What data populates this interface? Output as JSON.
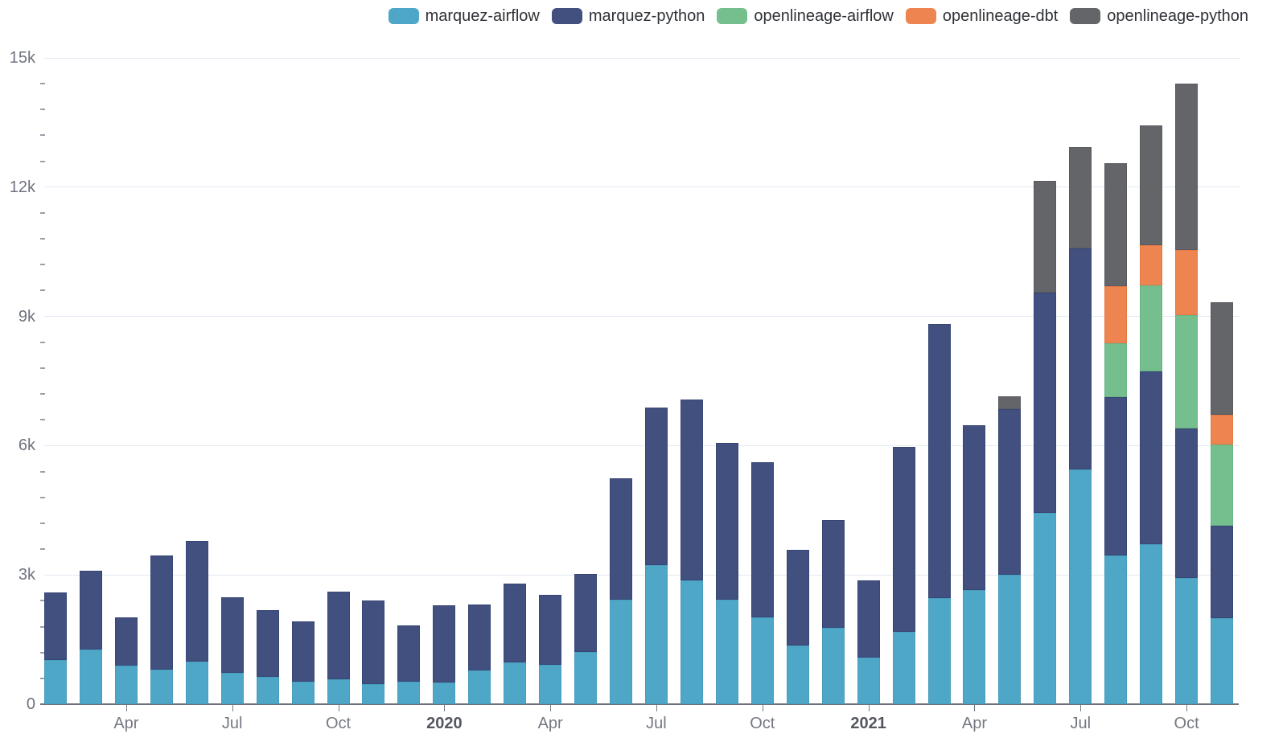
{
  "chart_data": {
    "type": "bar",
    "stacked": true,
    "title": "",
    "xlabel": "",
    "ylabel": "",
    "ylim": [
      0,
      15000
    ],
    "grid": true,
    "legend_position": "top-right",
    "y_ticks": [
      {
        "value": 0,
        "label": "0"
      },
      {
        "value": 3000,
        "label": "3k"
      },
      {
        "value": 6000,
        "label": "6k"
      },
      {
        "value": 9000,
        "label": "9k"
      },
      {
        "value": 12000,
        "label": "12k"
      },
      {
        "value": 15000,
        "label": "15k"
      }
    ],
    "y_minor_step": 600,
    "categories": [
      "Feb 2019",
      "Mar 2019",
      "Apr 2019",
      "May 2019",
      "Jun 2019",
      "Jul 2019",
      "Aug 2019",
      "Sep 2019",
      "Oct 2019",
      "Nov 2019",
      "Dec 2019",
      "Jan 2020",
      "Feb 2020",
      "Mar 2020",
      "Apr 2020",
      "May 2020",
      "Jun 2020",
      "Jul 2020",
      "Aug 2020",
      "Sep 2020",
      "Oct 2020",
      "Nov 2020",
      "Dec 2020",
      "Jan 2021",
      "Feb 2021",
      "Mar 2021",
      "Apr 2021",
      "May 2021",
      "Jun 2021",
      "Jul 2021",
      "Aug 2021",
      "Sep 2021",
      "Oct 2021",
      "Nov 2021"
    ],
    "x_tick_labels": [
      {
        "index": 2,
        "label": "Apr",
        "bold": false
      },
      {
        "index": 5,
        "label": "Jul",
        "bold": false
      },
      {
        "index": 8,
        "label": "Oct",
        "bold": false
      },
      {
        "index": 11,
        "label": "2020",
        "bold": true
      },
      {
        "index": 14,
        "label": "Apr",
        "bold": false
      },
      {
        "index": 17,
        "label": "Jul",
        "bold": false
      },
      {
        "index": 20,
        "label": "Oct",
        "bold": false
      },
      {
        "index": 23,
        "label": "2021",
        "bold": true
      },
      {
        "index": 26,
        "label": "Apr",
        "bold": false
      },
      {
        "index": 29,
        "label": "Jul",
        "bold": false
      },
      {
        "index": 32,
        "label": "Oct",
        "bold": false
      }
    ],
    "series": [
      {
        "name": "marquez-airflow",
        "color": "#4fa7c8",
        "border": "#3b89a9",
        "values": [
          1030,
          1270,
          900,
          810,
          980,
          720,
          630,
          520,
          570,
          470,
          520,
          500,
          780,
          970,
          910,
          1220,
          2420,
          3220,
          2880,
          2420,
          2020,
          1360,
          1780,
          1090,
          1670,
          2460,
          2640,
          3000,
          4440,
          5450,
          3460,
          3720,
          2920,
          1990
        ]
      },
      {
        "name": "marquez-python",
        "color": "#41507e",
        "border": "#273462",
        "values": [
          1570,
          1830,
          1120,
          2650,
          2810,
          1770,
          1550,
          1400,
          2050,
          1930,
          1310,
          1790,
          1530,
          1820,
          1620,
          1800,
          2820,
          3660,
          4200,
          3650,
          3600,
          2220,
          2490,
          1780,
          4300,
          6370,
          3830,
          3840,
          5120,
          5130,
          3670,
          4010,
          3470,
          2160
        ]
      },
      {
        "name": "openlineage-airflow",
        "color": "#75bf8e",
        "border": "#58a377",
        "values": [
          0,
          0,
          0,
          0,
          0,
          0,
          0,
          0,
          0,
          0,
          0,
          0,
          0,
          0,
          0,
          0,
          0,
          0,
          0,
          0,
          0,
          0,
          0,
          0,
          0,
          0,
          0,
          0,
          0,
          0,
          1250,
          1990,
          2640,
          1870
        ]
      },
      {
        "name": "openlineage-dbt",
        "color": "#ee8450",
        "border": "#d16a31",
        "values": [
          0,
          0,
          0,
          0,
          0,
          0,
          0,
          0,
          0,
          0,
          0,
          0,
          0,
          0,
          0,
          0,
          0,
          0,
          0,
          0,
          0,
          0,
          0,
          0,
          0,
          0,
          0,
          0,
          0,
          0,
          1320,
          930,
          1510,
          700
        ]
      },
      {
        "name": "openlineage-python",
        "color": "#636569",
        "border": "#48494d",
        "values": [
          0,
          0,
          0,
          0,
          0,
          0,
          0,
          0,
          0,
          0,
          0,
          0,
          0,
          0,
          0,
          0,
          0,
          0,
          0,
          0,
          0,
          0,
          0,
          0,
          0,
          0,
          0,
          300,
          2590,
          2350,
          2850,
          2780,
          3860,
          2600
        ]
      }
    ]
  }
}
